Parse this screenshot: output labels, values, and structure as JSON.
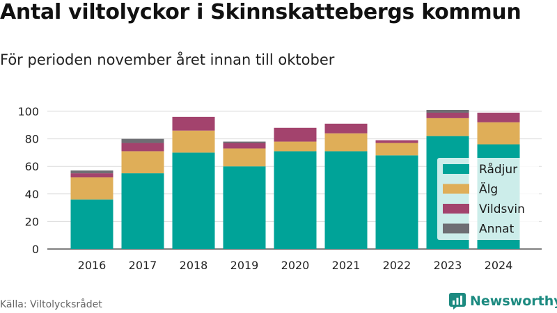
{
  "title": "Antal viltolyckor i Skinnskattebergs kommun",
  "subtitle": "För perioden november året innan till oktober",
  "source": "Källa: Viltolycksrådet",
  "brand": "Newsworthy",
  "chart_data": {
    "type": "bar",
    "stacked": true,
    "categories": [
      "2016",
      "2017",
      "2018",
      "2019",
      "2020",
      "2021",
      "2022",
      "2023",
      "2024"
    ],
    "series": [
      {
        "name": "Rådjur",
        "color": "#00a398",
        "values": [
          36,
          55,
          70,
          60,
          71,
          71,
          68,
          82,
          76
        ]
      },
      {
        "name": "Älg",
        "color": "#dfae58",
        "values": [
          16,
          16,
          16,
          13,
          7,
          13,
          9,
          13,
          16
        ]
      },
      {
        "name": "Vildsvin",
        "color": "#a3436d",
        "values": [
          3,
          6,
          10,
          4,
          10,
          7,
          2,
          4,
          7
        ]
      },
      {
        "name": "Annat",
        "color": "#6e6e73",
        "values": [
          2,
          3,
          0,
          1,
          0,
          0,
          0,
          2,
          0
        ]
      }
    ],
    "ylim": [
      0,
      100
    ],
    "yticks": [
      0,
      20,
      40,
      60,
      80,
      100
    ],
    "grid": true,
    "legend_position": "right"
  }
}
